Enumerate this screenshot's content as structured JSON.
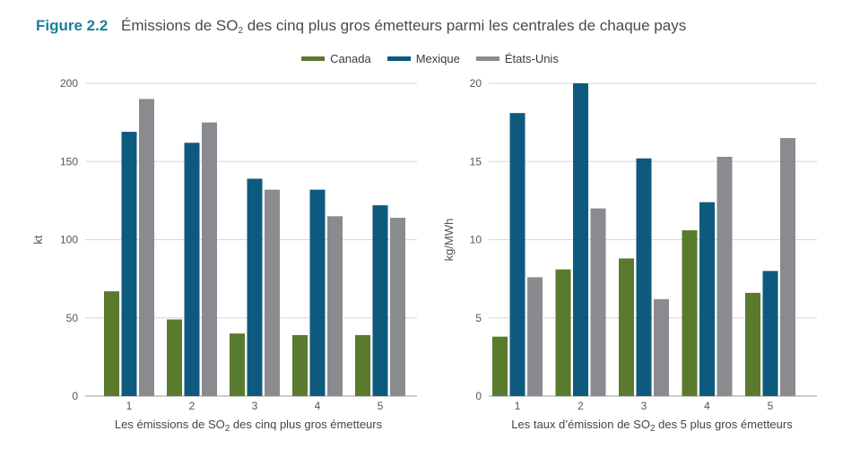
{
  "figure": {
    "label": "Figure 2.2",
    "title_before": "Émissions de SO",
    "title_sub": "2",
    "title_after": " des cinq plus gros émetteurs parmi les centrales de chaque pays"
  },
  "legend": [
    {
      "name": "Canada",
      "color": "#5a7a2e"
    },
    {
      "name": "Mexique",
      "color": "#0e5a7f"
    },
    {
      "name": "États-Unis",
      "color": "#8a8b8e"
    }
  ],
  "chart_data": [
    {
      "type": "bar",
      "categories": [
        "1",
        "2",
        "3",
        "4",
        "5"
      ],
      "series": [
        {
          "name": "Canada",
          "values": [
            67,
            49,
            40,
            39,
            39
          ]
        },
        {
          "name": "Mexique",
          "values": [
            169,
            162,
            139,
            132,
            122
          ]
        },
        {
          "name": "États-Unis",
          "values": [
            190,
            175,
            132,
            115,
            114
          ]
        }
      ],
      "ylabel": "kt",
      "ylim": [
        0,
        200
      ],
      "yticks": [
        "0",
        "50",
        "100",
        "150",
        "200"
      ],
      "xlabel_before": "Les émissions de SO",
      "xlabel_sub": "2",
      "xlabel_after": " des cinq plus gros émetteurs"
    },
    {
      "type": "bar",
      "categories": [
        "1",
        "2",
        "3",
        "4",
        "5"
      ],
      "series": [
        {
          "name": "Canada",
          "values": [
            3.8,
            8.1,
            8.8,
            10.6,
            6.6
          ]
        },
        {
          "name": "Mexique",
          "values": [
            18.1,
            20.0,
            15.2,
            12.4,
            8.0
          ]
        },
        {
          "name": "États-Unis",
          "values": [
            7.6,
            12.0,
            6.2,
            15.3,
            16.5
          ]
        }
      ],
      "ylabel": "kg/MWh",
      "ylim": [
        0,
        20
      ],
      "yticks": [
        "0",
        "5",
        "10",
        "15",
        "20"
      ],
      "xlabel_before": "Les taux d’émission de SO",
      "xlabel_sub": "2",
      "xlabel_after": " des 5 plus gros émetteurs"
    }
  ]
}
